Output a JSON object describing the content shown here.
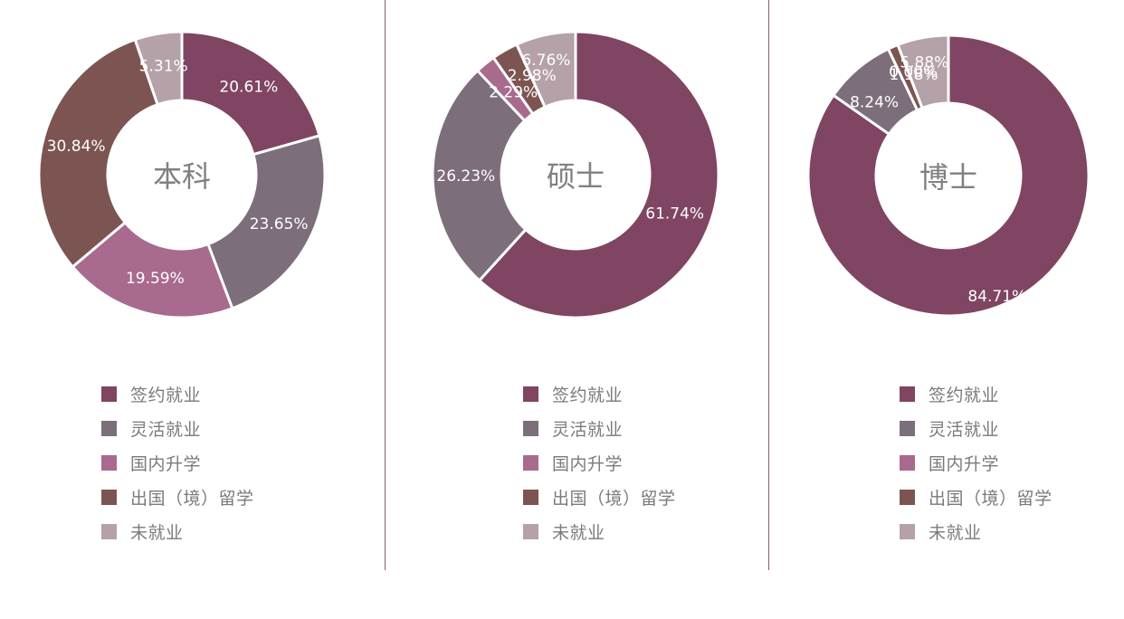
{
  "categories": [
    "签约就业",
    "灵活就业",
    "国内升学",
    "出国（境）留学",
    "未就业"
  ],
  "colors": [
    "#7f4562",
    "#7d6e7c",
    "#a86a8d",
    "#7c5552",
    "#b5a1a8"
  ],
  "chart_data": [
    {
      "type": "pie",
      "title": "本科",
      "categories": [
        "签约就业",
        "灵活就业",
        "国内升学",
        "出国（境）留学",
        "未就业"
      ],
      "values": [
        20.61,
        23.65,
        19.59,
        30.84,
        5.31
      ],
      "labels": [
        "20.61%",
        "23.65%",
        "19.59%",
        "30.84%",
        "5.31%"
      ]
    },
    {
      "type": "pie",
      "title": "硕士",
      "categories": [
        "签约就业",
        "灵活就业",
        "国内升学",
        "出国（境）留学",
        "未就业"
      ],
      "values": [
        61.74,
        26.23,
        2.29,
        2.98,
        6.76
      ],
      "labels": [
        "61.74%",
        "26.23%",
        "2.29%",
        "2.98%",
        "6.76%"
      ]
    },
    {
      "type": "pie",
      "title": "博士",
      "categories": [
        "签约就业",
        "灵活就业",
        "国内升学",
        "出国（境）留学",
        "未就业"
      ],
      "values": [
        84.71,
        8.24,
        0.0,
        1.18,
        5.88
      ],
      "labels": [
        "84.71%",
        "8.24%",
        "0.00%",
        "1.18%",
        "5.88%"
      ]
    }
  ]
}
